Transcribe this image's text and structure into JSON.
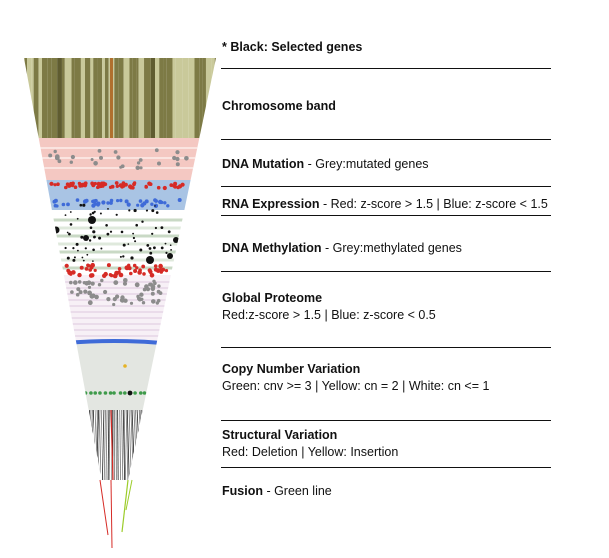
{
  "legend": {
    "header": "* Black:  Selected genes",
    "tracks": [
      {
        "title": "Chromosome band",
        "desc": "",
        "sub": ""
      },
      {
        "title": "DNA Mutation",
        "desc": " - Grey:mutated genes",
        "sub": ""
      },
      {
        "title": "RNA Expression",
        "desc": " - Red: z-score > 1.5 | Blue: z-score < 1.5",
        "sub": ""
      },
      {
        "title": "DNA Methylation",
        "desc": " - Grey:methylated genes",
        "sub": ""
      },
      {
        "title": "Global Proteome",
        "desc": "",
        "sub": "Red:z-score > 1.5 | Blue: z-score < 0.5"
      },
      {
        "title": "Copy Number Variation",
        "desc": "",
        "sub": "Green: cnv >= 3 | Yellow: cn = 2 | White: cn <= 1"
      },
      {
        "title": "Structural Variation",
        "desc": "",
        "sub": "Red: Deletion | Yellow: Insertion"
      },
      {
        "title": "Fusion",
        "desc": " - Green line",
        "sub": ""
      }
    ]
  },
  "colors": {
    "band_light": "#c9c99a",
    "band_dark": "#7d7a45",
    "band_orange": "#b0702e",
    "mutation_bg": "#f4c8c2",
    "expression_bg": "#a9c4e4",
    "methylation_bg": "#dfe9dc",
    "proteome_bg": "#f2e8f1",
    "cnv_bg": "#e3e6e1",
    "red": "#d62b26",
    "blue": "#3f6bd8",
    "grey": "#8c8c8c",
    "green": "#3e9a4a",
    "yellow": "#e6b325",
    "black": "#111111"
  }
}
